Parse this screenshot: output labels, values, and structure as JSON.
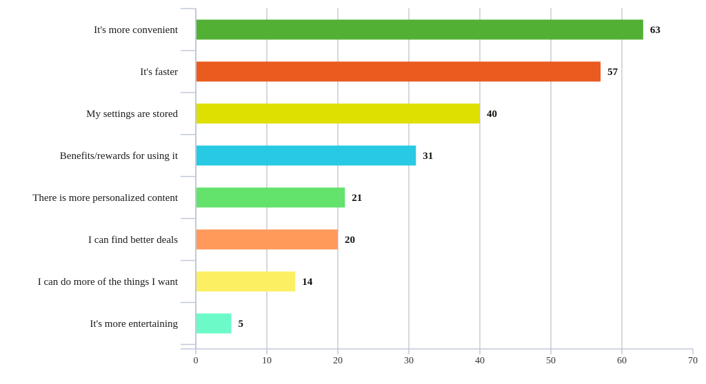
{
  "chart_data": {
    "type": "bar",
    "orientation": "horizontal",
    "categories": [
      "It's more convenient",
      "It's faster",
      "My settings are stored",
      "Benefits/rewards for using it",
      "There is more personalized content",
      "I can find better deals",
      "I can do more of the things I want",
      "It's more entertaining"
    ],
    "values": [
      63,
      57,
      40,
      31,
      21,
      20,
      14,
      5
    ],
    "colors": [
      "#52b135",
      "#e95b1e",
      "#dde000",
      "#27c9e3",
      "#63e36c",
      "#ff9a5b",
      "#fcef62",
      "#6cfbc8"
    ],
    "data_labels": [
      "63",
      "57",
      "40",
      "31",
      "21",
      "20",
      "14",
      "5"
    ],
    "xlim": [
      0,
      70
    ],
    "x_ticks": [
      "0",
      "10",
      "20",
      "30",
      "40",
      "50",
      "60",
      "70"
    ],
    "tick_values": [
      0,
      10,
      20,
      30,
      40,
      50,
      60,
      70
    ],
    "grid": true,
    "grid_color": "#c8ccd2",
    "axis_color": "#c0c8d8",
    "legend": "none",
    "title": "",
    "xlabel": "",
    "ylabel": ""
  }
}
